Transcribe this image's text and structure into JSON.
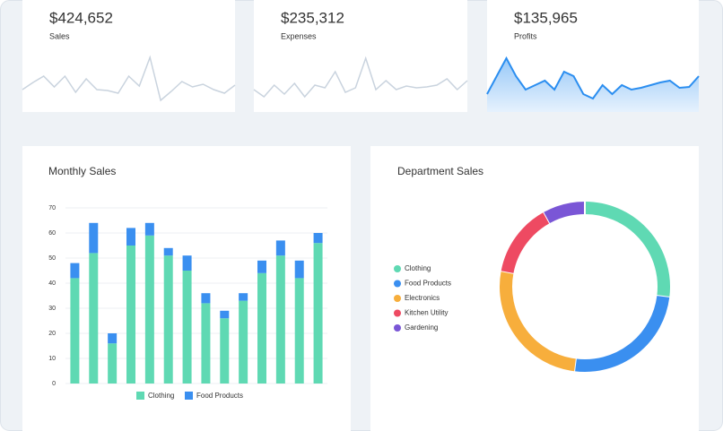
{
  "chart_data": [
    {
      "type": "line",
      "title": "$424,652",
      "subtitle": "Sales",
      "color": "#c9d3de",
      "area": false,
      "ylim": [
        0,
        70
      ],
      "values": [
        25,
        33,
        40,
        28,
        40,
        22,
        37,
        25,
        24,
        21,
        40,
        29,
        61,
        13,
        23,
        34,
        28,
        31,
        25,
        21,
        30
      ]
    },
    {
      "type": "line",
      "title": "$235,312",
      "subtitle": "Expenses",
      "color": "#c9d3de",
      "area": false,
      "ylim": [
        0,
        70
      ],
      "values": [
        25,
        17,
        30,
        20,
        32,
        17,
        30,
        27,
        45,
        22,
        27,
        60,
        25,
        35,
        25,
        29,
        27,
        28,
        30,
        37,
        25,
        35
      ]
    },
    {
      "type": "line",
      "title": "$135,965",
      "subtitle": "Profits",
      "color": "#2b8ef0",
      "area": true,
      "ylim": [
        0,
        70
      ],
      "values": [
        20,
        40,
        60,
        40,
        25,
        30,
        35,
        25,
        45,
        40,
        20,
        15,
        30,
        20,
        30,
        25,
        27,
        30,
        33,
        35,
        27,
        28,
        40
      ]
    },
    {
      "type": "bar",
      "stacked": true,
      "title": "Monthly Sales",
      "grid": true,
      "categories": [
        null,
        null,
        null,
        null,
        null,
        null,
        null,
        null,
        null,
        null,
        null,
        null,
        null,
        null
      ],
      "series": [
        {
          "name": "Clothing",
          "color": "#5fd9b3",
          "values": [
            42,
            52,
            16,
            55,
            59,
            51,
            45,
            32,
            26,
            33,
            44,
            51,
            42,
            56
          ]
        },
        {
          "name": "Food Products",
          "color": "#3a8ff0",
          "values": [
            6,
            12,
            4,
            7,
            5,
            3,
            6,
            4,
            3,
            3,
            5,
            6,
            7,
            4
          ]
        }
      ],
      "ylim": [
        0,
        70
      ],
      "yticks": [
        0,
        10,
        20,
        30,
        40,
        50,
        60,
        70
      ]
    },
    {
      "type": "pie",
      "donut": true,
      "title": "Department Sales",
      "categories": [
        "Clothing",
        "Food Products",
        "Electronics",
        "Kitchen Utility",
        "Gardening"
      ],
      "values": [
        27,
        25,
        26,
        14,
        8
      ],
      "colors": [
        "#5fd9b3",
        "#3a8ff0",
        "#f7ae3c",
        "#ee4a62",
        "#7a56d6"
      ]
    }
  ]
}
